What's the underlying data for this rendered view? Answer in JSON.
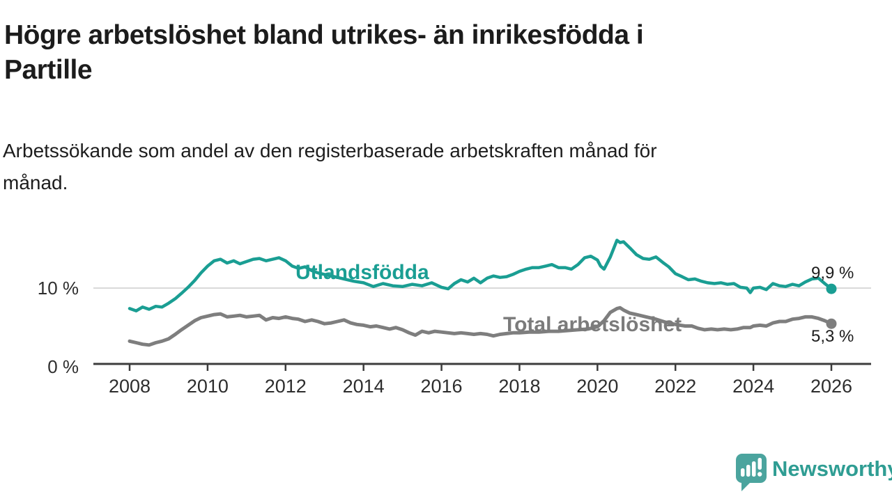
{
  "title": {
    "lines": [
      "Högre arbetslöshet bland utrikes- än inrikesfödda i",
      "Partille"
    ]
  },
  "subtitle": {
    "lines": [
      "Arbetssökande som andel av den registerbaserade arbetskraften månad för",
      "månad."
    ]
  },
  "chart_data": {
    "type": "line",
    "title": "Högre arbetslöshet bland utrikes- än inrikesfödda i Partille",
    "subtitle": "Arbetssökande som andel av den registerbaserade arbetskraften månad för månad.",
    "unit": "%",
    "xlabel": "",
    "ylabel": "",
    "xlim": [
      2007.1,
      2027.0
    ],
    "ylim": [
      0,
      17.5
    ],
    "grid": "single horizontal gridline at 10 %",
    "legend_position": "inline labels on lines",
    "x_ticks": [
      {
        "year": 2008,
        "label": "2008"
      },
      {
        "year": 2010,
        "label": "2010"
      },
      {
        "year": 2012,
        "label": "2012"
      },
      {
        "year": 2014,
        "label": "2014"
      },
      {
        "year": 2016,
        "label": "2016"
      },
      {
        "year": 2018,
        "label": "2018"
      },
      {
        "year": 2020,
        "label": "2020"
      },
      {
        "year": 2022,
        "label": "2022"
      },
      {
        "year": 2024,
        "label": "2024"
      },
      {
        "year": 2026,
        "label": "2026"
      }
    ],
    "y_ticks": [
      {
        "value": 0,
        "label": "0 %"
      },
      {
        "value": 10,
        "label": "10 %"
      }
    ],
    "series": [
      {
        "name": "Utlandsfödda",
        "color": "#1a9e93",
        "end_value": 9.9,
        "end_label": "9,9 %",
        "points": [
          [
            2008.0,
            7.3
          ],
          [
            2008.17,
            7.0
          ],
          [
            2008.33,
            7.5
          ],
          [
            2008.5,
            7.2
          ],
          [
            2008.67,
            7.6
          ],
          [
            2008.83,
            7.5
          ],
          [
            2009.0,
            8.0
          ],
          [
            2009.17,
            8.6
          ],
          [
            2009.33,
            9.3
          ],
          [
            2009.5,
            10.1
          ],
          [
            2009.67,
            11.0
          ],
          [
            2009.83,
            12.0
          ],
          [
            2010.0,
            12.9
          ],
          [
            2010.17,
            13.6
          ],
          [
            2010.33,
            13.8
          ],
          [
            2010.5,
            13.3
          ],
          [
            2010.67,
            13.6
          ],
          [
            2010.83,
            13.2
          ],
          [
            2011.0,
            13.5
          ],
          [
            2011.17,
            13.8
          ],
          [
            2011.33,
            13.9
          ],
          [
            2011.5,
            13.6
          ],
          [
            2011.67,
            13.8
          ],
          [
            2011.83,
            14.0
          ],
          [
            2012.0,
            13.6
          ],
          [
            2012.17,
            12.9
          ],
          [
            2012.33,
            12.6
          ],
          [
            2012.5,
            12.8
          ],
          [
            2012.67,
            12.3
          ],
          [
            2012.83,
            12.0
          ],
          [
            2013.0,
            11.8
          ],
          [
            2013.25,
            11.5
          ],
          [
            2013.5,
            11.2
          ],
          [
            2013.75,
            10.9
          ],
          [
            2014.0,
            10.7
          ],
          [
            2014.25,
            10.2
          ],
          [
            2014.5,
            10.6
          ],
          [
            2014.75,
            10.3
          ],
          [
            2015.0,
            10.2
          ],
          [
            2015.25,
            10.5
          ],
          [
            2015.5,
            10.3
          ],
          [
            2015.75,
            10.7
          ],
          [
            2016.0,
            10.1
          ],
          [
            2016.17,
            9.9
          ],
          [
            2016.33,
            10.6
          ],
          [
            2016.5,
            11.1
          ],
          [
            2016.67,
            10.8
          ],
          [
            2016.83,
            11.3
          ],
          [
            2017.0,
            10.7
          ],
          [
            2017.17,
            11.3
          ],
          [
            2017.33,
            11.6
          ],
          [
            2017.5,
            11.4
          ],
          [
            2017.67,
            11.5
          ],
          [
            2017.83,
            11.8
          ],
          [
            2018.0,
            12.2
          ],
          [
            2018.17,
            12.5
          ],
          [
            2018.33,
            12.7
          ],
          [
            2018.5,
            12.7
          ],
          [
            2018.67,
            12.9
          ],
          [
            2018.83,
            13.1
          ],
          [
            2019.0,
            12.7
          ],
          [
            2019.17,
            12.7
          ],
          [
            2019.33,
            12.5
          ],
          [
            2019.5,
            13.1
          ],
          [
            2019.67,
            14.0
          ],
          [
            2019.83,
            14.2
          ],
          [
            2020.0,
            13.7
          ],
          [
            2020.08,
            12.9
          ],
          [
            2020.17,
            12.5
          ],
          [
            2020.33,
            14.1
          ],
          [
            2020.5,
            16.3
          ],
          [
            2020.58,
            16.0
          ],
          [
            2020.67,
            16.1
          ],
          [
            2020.83,
            15.3
          ],
          [
            2021.0,
            14.4
          ],
          [
            2021.17,
            13.9
          ],
          [
            2021.33,
            13.8
          ],
          [
            2021.5,
            14.1
          ],
          [
            2021.67,
            13.4
          ],
          [
            2021.83,
            12.8
          ],
          [
            2022.0,
            11.9
          ],
          [
            2022.17,
            11.5
          ],
          [
            2022.33,
            11.1
          ],
          [
            2022.5,
            11.2
          ],
          [
            2022.67,
            10.9
          ],
          [
            2022.83,
            10.7
          ],
          [
            2023.0,
            10.6
          ],
          [
            2023.17,
            10.7
          ],
          [
            2023.33,
            10.5
          ],
          [
            2023.5,
            10.6
          ],
          [
            2023.67,
            10.1
          ],
          [
            2023.83,
            10.0
          ],
          [
            2023.92,
            9.4
          ],
          [
            2024.0,
            10.0
          ],
          [
            2024.17,
            10.1
          ],
          [
            2024.33,
            9.8
          ],
          [
            2024.5,
            10.6
          ],
          [
            2024.67,
            10.3
          ],
          [
            2024.83,
            10.2
          ],
          [
            2025.0,
            10.5
          ],
          [
            2025.17,
            10.3
          ],
          [
            2025.33,
            10.8
          ],
          [
            2025.5,
            11.2
          ],
          [
            2025.67,
            11.3
          ],
          [
            2025.83,
            10.6
          ],
          [
            2026.0,
            9.9
          ]
        ]
      },
      {
        "name": "Total arbetslöshet",
        "color": "#7e7e7e",
        "end_value": 5.3,
        "end_label": "5,3 %",
        "points": [
          [
            2008.0,
            3.0
          ],
          [
            2008.17,
            2.8
          ],
          [
            2008.33,
            2.6
          ],
          [
            2008.5,
            2.5
          ],
          [
            2008.67,
            2.8
          ],
          [
            2008.83,
            3.0
          ],
          [
            2009.0,
            3.3
          ],
          [
            2009.17,
            3.9
          ],
          [
            2009.33,
            4.5
          ],
          [
            2009.5,
            5.1
          ],
          [
            2009.67,
            5.7
          ],
          [
            2009.83,
            6.1
          ],
          [
            2010.0,
            6.3
          ],
          [
            2010.17,
            6.5
          ],
          [
            2010.33,
            6.6
          ],
          [
            2010.5,
            6.2
          ],
          [
            2010.67,
            6.3
          ],
          [
            2010.83,
            6.4
          ],
          [
            2011.0,
            6.2
          ],
          [
            2011.17,
            6.3
          ],
          [
            2011.33,
            6.4
          ],
          [
            2011.5,
            5.8
          ],
          [
            2011.67,
            6.1
          ],
          [
            2011.83,
            6.0
          ],
          [
            2012.0,
            6.2
          ],
          [
            2012.17,
            6.0
          ],
          [
            2012.33,
            5.9
          ],
          [
            2012.5,
            5.6
          ],
          [
            2012.67,
            5.8
          ],
          [
            2012.83,
            5.6
          ],
          [
            2013.0,
            5.3
          ],
          [
            2013.17,
            5.4
          ],
          [
            2013.33,
            5.6
          ],
          [
            2013.5,
            5.8
          ],
          [
            2013.67,
            5.4
          ],
          [
            2013.83,
            5.2
          ],
          [
            2014.0,
            5.1
          ],
          [
            2014.17,
            4.9
          ],
          [
            2014.33,
            5.0
          ],
          [
            2014.5,
            4.8
          ],
          [
            2014.67,
            4.6
          ],
          [
            2014.83,
            4.8
          ],
          [
            2015.0,
            4.5
          ],
          [
            2015.17,
            4.1
          ],
          [
            2015.33,
            3.8
          ],
          [
            2015.5,
            4.3
          ],
          [
            2015.67,
            4.1
          ],
          [
            2015.83,
            4.3
          ],
          [
            2016.0,
            4.2
          ],
          [
            2016.17,
            4.1
          ],
          [
            2016.33,
            4.0
          ],
          [
            2016.5,
            4.1
          ],
          [
            2016.67,
            4.0
          ],
          [
            2016.83,
            3.9
          ],
          [
            2017.0,
            4.0
          ],
          [
            2017.17,
            3.9
          ],
          [
            2017.33,
            3.7
          ],
          [
            2017.5,
            3.9
          ],
          [
            2017.67,
            4.0
          ],
          [
            2017.83,
            4.1
          ],
          [
            2018.0,
            4.1
          ],
          [
            2018.25,
            4.2
          ],
          [
            2018.5,
            4.2
          ],
          [
            2018.75,
            4.3
          ],
          [
            2019.0,
            4.3
          ],
          [
            2019.25,
            4.4
          ],
          [
            2019.5,
            4.5
          ],
          [
            2019.75,
            4.6
          ],
          [
            2020.0,
            4.9
          ],
          [
            2020.17,
            5.7
          ],
          [
            2020.33,
            6.8
          ],
          [
            2020.5,
            7.3
          ],
          [
            2020.58,
            7.4
          ],
          [
            2020.67,
            7.1
          ],
          [
            2020.83,
            6.7
          ],
          [
            2021.0,
            6.5
          ],
          [
            2021.25,
            6.2
          ],
          [
            2021.5,
            5.9
          ],
          [
            2021.75,
            5.5
          ],
          [
            2022.0,
            5.2
          ],
          [
            2022.25,
            5.0
          ],
          [
            2022.42,
            5.0
          ],
          [
            2022.58,
            4.7
          ],
          [
            2022.75,
            4.5
          ],
          [
            2022.92,
            4.6
          ],
          [
            2023.08,
            4.5
          ],
          [
            2023.25,
            4.6
          ],
          [
            2023.42,
            4.5
          ],
          [
            2023.58,
            4.6
          ],
          [
            2023.75,
            4.8
          ],
          [
            2023.92,
            4.8
          ],
          [
            2024.0,
            5.0
          ],
          [
            2024.17,
            5.1
          ],
          [
            2024.33,
            5.0
          ],
          [
            2024.5,
            5.4
          ],
          [
            2024.67,
            5.6
          ],
          [
            2024.83,
            5.6
          ],
          [
            2025.0,
            5.9
          ],
          [
            2025.17,
            6.0
          ],
          [
            2025.33,
            6.2
          ],
          [
            2025.5,
            6.2
          ],
          [
            2025.67,
            6.0
          ],
          [
            2025.83,
            5.7
          ],
          [
            2026.0,
            5.3
          ]
        ]
      }
    ]
  },
  "footer": {
    "brand": "Newsworthy"
  },
  "colors": {
    "accent_teal": "#1a9e93",
    "series_gray": "#7e7e7e",
    "axis": "#3c3c3c",
    "gridline": "#d9d9d9",
    "logo_mark": "#4ba49e",
    "logo_text": "#2f9d93"
  }
}
